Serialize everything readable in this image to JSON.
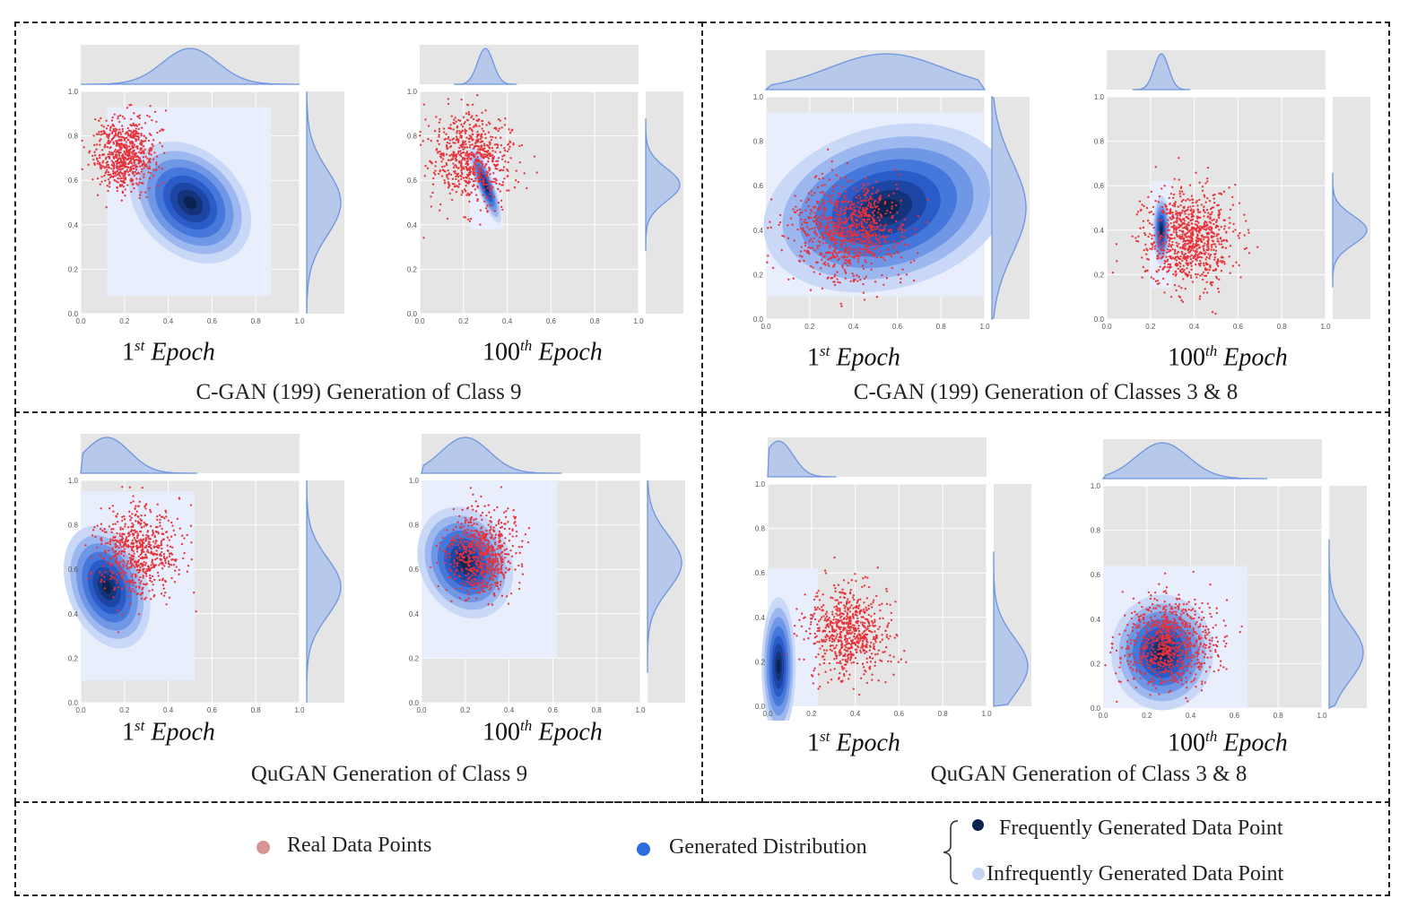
{
  "colors": {
    "real_point": "#e8323a",
    "real_point_legend": "#d99494",
    "kde_dark": "#0b2350",
    "kde_mid": "#3a6fd8",
    "kde_light": "#e8eefc",
    "marginal_fill": "#b7c9ea",
    "marginal_line": "#6d95e0",
    "panel_bg": "#e5e5e5"
  },
  "epochs": {
    "first_num": "1",
    "first_sup": "st",
    "hundredth_num": "100",
    "hundredth_sup": "th",
    "word": "Epoch"
  },
  "captions": {
    "tl": "C-GAN (199) Generation of Class 9",
    "tr": "C-GAN (199) Generation of Classes 3 & 8",
    "bl": "QuGAN Generation of Class 9",
    "br": "QuGAN Generation of Class 3 & 8"
  },
  "legend": {
    "real": "Real Data Points",
    "generated": "Generated Distribution",
    "frequent": "Frequently Generated Data Point",
    "infrequent": "Infrequently Generated Data Point"
  },
  "chart_data": [
    {
      "type": "scatter",
      "group": "C-GAN (199) Generation of Class 9",
      "label": "1st Epoch",
      "xlim": [
        0,
        1
      ],
      "ylim": [
        0,
        1
      ],
      "ticks": [
        "0.0",
        "0.2",
        "0.4",
        "0.6",
        "0.8",
        "1.0"
      ],
      "real": {
        "cx": 0.2,
        "cy": 0.72,
        "sx": 0.07,
        "sy": 0.08,
        "n": 700
      },
      "generated_kde": {
        "cx": 0.5,
        "cy": 0.5,
        "sx": 0.09,
        "sy": 0.12,
        "rot": -45
      },
      "light_region": {
        "x": [
          0.12,
          0.87
        ],
        "y": [
          0.08,
          0.93
        ]
      }
    },
    {
      "type": "scatter",
      "group": "C-GAN (199) Generation of Class 9",
      "label": "100th Epoch",
      "xlim": [
        0,
        1
      ],
      "ylim": [
        0,
        1
      ],
      "ticks": [
        "0.0",
        "0.2",
        "0.4",
        "0.6",
        "0.8",
        "1.0"
      ],
      "real": {
        "cx": 0.24,
        "cy": 0.7,
        "sx": 0.09,
        "sy": 0.1,
        "n": 700
      },
      "generated_kde": {
        "cx": 0.3,
        "cy": 0.58,
        "sx": 0.015,
        "sy": 0.07,
        "rot": -20
      },
      "light_region": {
        "x": [
          0.23,
          0.38
        ],
        "y": [
          0.38,
          0.72
        ]
      }
    },
    {
      "type": "scatter",
      "group": "C-GAN (199) Generation of Classes 3 & 8",
      "label": "1st Epoch",
      "xlim": [
        0,
        1
      ],
      "ylim": [
        0,
        1
      ],
      "ticks": [
        "0.0",
        "0.2",
        "0.4",
        "0.6",
        "0.8",
        "1.0"
      ],
      "real": {
        "cx": 0.38,
        "cy": 0.4,
        "sx": 0.13,
        "sy": 0.11,
        "n": 900
      },
      "generated_kde": {
        "cx": 0.55,
        "cy": 0.5,
        "sx": 0.22,
        "sy": 0.14,
        "rot": -15
      },
      "light_region": {
        "x": [
          0.0,
          1.0
        ],
        "y": [
          0.1,
          0.93
        ]
      }
    },
    {
      "type": "scatter",
      "group": "C-GAN (199) Generation of Classes 3 & 8",
      "label": "100th Epoch",
      "xlim": [
        0,
        1
      ],
      "ylim": [
        0,
        1
      ],
      "ticks": [
        "0.0",
        "0.2",
        "0.4",
        "0.6",
        "0.8",
        "1.0"
      ],
      "real": {
        "cx": 0.38,
        "cy": 0.36,
        "sx": 0.1,
        "sy": 0.11,
        "n": 900
      },
      "generated_kde": {
        "cx": 0.25,
        "cy": 0.4,
        "sx": 0.015,
        "sy": 0.06,
        "rot": 0
      },
      "light_region": {
        "x": [
          0.2,
          0.3
        ],
        "y": [
          0.14,
          0.62
        ]
      }
    },
    {
      "type": "scatter",
      "group": "QuGAN Generation of Class 9",
      "label": "1st Epoch",
      "xlim": [
        0,
        1
      ],
      "ylim": [
        0,
        1
      ],
      "ticks": [
        "0.0",
        "0.2",
        "0.4",
        "0.6",
        "0.8",
        "1.0"
      ],
      "real": {
        "cx": 0.26,
        "cy": 0.68,
        "sx": 0.09,
        "sy": 0.1,
        "n": 650
      },
      "generated_kde": {
        "cx": 0.12,
        "cy": 0.52,
        "sx": 0.07,
        "sy": 0.11,
        "rot": -20
      },
      "light_region": {
        "x": [
          0.0,
          0.52
        ],
        "y": [
          0.1,
          0.95
        ]
      }
    },
    {
      "type": "scatter",
      "group": "QuGAN Generation of Class 9",
      "label": "100th Epoch",
      "xlim": [
        0,
        1
      ],
      "ylim": [
        0,
        1
      ],
      "ticks": [
        "0.0",
        "0.2",
        "0.4",
        "0.6",
        "0.8",
        "1.0"
      ],
      "real": {
        "cx": 0.27,
        "cy": 0.67,
        "sx": 0.08,
        "sy": 0.09,
        "n": 650
      },
      "generated_kde": {
        "cx": 0.2,
        "cy": 0.63,
        "sx": 0.08,
        "sy": 0.1,
        "rot": -25
      },
      "light_region": {
        "x": [
          0.0,
          0.62
        ],
        "y": [
          0.2,
          1.0
        ]
      }
    },
    {
      "type": "scatter",
      "group": "QuGAN Generation of Class 3 & 8",
      "label": "1st Epoch",
      "xlim": [
        0,
        1
      ],
      "ylim": [
        0,
        1
      ],
      "ticks": [
        "0.0",
        "0.2",
        "0.4",
        "0.6",
        "0.8",
        "1.0"
      ],
      "real": {
        "cx": 0.36,
        "cy": 0.33,
        "sx": 0.09,
        "sy": 0.1,
        "n": 700
      },
      "generated_kde": {
        "cx": 0.05,
        "cy": 0.18,
        "sx": 0.03,
        "sy": 0.12,
        "rot": 0
      },
      "light_region": {
        "x": [
          0.0,
          0.23
        ],
        "y": [
          0.0,
          0.62
        ]
      }
    },
    {
      "type": "scatter",
      "group": "QuGAN Generation of Class 3 & 8",
      "label": "100th Epoch",
      "xlim": [
        0,
        1
      ],
      "ylim": [
        0,
        1
      ],
      "ticks": [
        "0.0",
        "0.2",
        "0.4",
        "0.6",
        "0.8",
        "1.0"
      ],
      "real": {
        "cx": 0.31,
        "cy": 0.29,
        "sx": 0.1,
        "sy": 0.1,
        "n": 800
      },
      "generated_kde": {
        "cx": 0.27,
        "cy": 0.25,
        "sx": 0.09,
        "sy": 0.1,
        "rot": 0
      },
      "light_region": {
        "x": [
          0.0,
          0.66
        ],
        "y": [
          0.0,
          0.64
        ]
      }
    }
  ]
}
